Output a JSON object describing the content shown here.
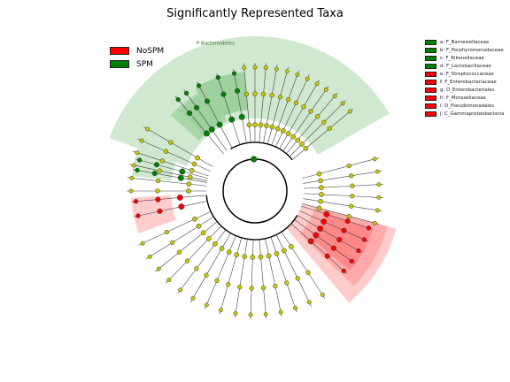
{
  "chart_data": {
    "type": "cladogram",
    "title": "Significantly Represented Taxa",
    "legend": [
      {
        "label": "NoSPM",
        "color": "#ff0000"
      },
      {
        "label": "SPM",
        "color": "#008000"
      }
    ],
    "clade_sector_label": "P Bacteroidetes",
    "taxa_key": [
      {
        "label": "a: F_Barnesiellaceae",
        "group": "SPM"
      },
      {
        "label": "b: F_Porphyromonadaceae",
        "group": "SPM"
      },
      {
        "label": "c: F_Rikenellaceae",
        "group": "SPM"
      },
      {
        "label": "d: F_Lactobacillaceae",
        "group": "SPM"
      },
      {
        "label": "e: F_Streptococcaceae",
        "group": "NoSPM"
      },
      {
        "label": "f: F_Enterobacteriaceae",
        "group": "NoSPM"
      },
      {
        "label": "g: O_Enterobacteriales",
        "group": "NoSPM"
      },
      {
        "label": "h: F_Moraxellaceae",
        "group": "NoSPM"
      },
      {
        "label": "i: O_Pseudomonadales",
        "group": "NoSPM"
      },
      {
        "label": "j: C_Gammaproteobacteria",
        "group": "NoSPM"
      }
    ],
    "colors": {
      "SPM": "#008000",
      "NoSPM": "#ff0000",
      "neutral_node": "#c8c800",
      "spm_shade": "#cfe8cf",
      "nospm_shade": "#ffcccc"
    }
  }
}
